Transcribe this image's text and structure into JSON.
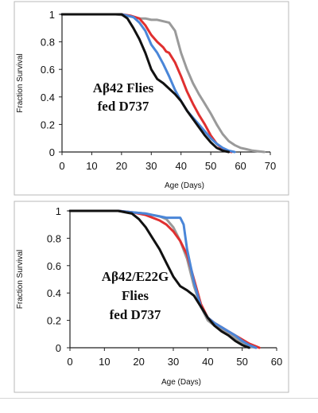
{
  "chart_data": [
    {
      "type": "line",
      "annotation": [
        "Aβ42 Flies",
        "fed D737"
      ],
      "xlabel": "Age (Days)",
      "ylabel": "Fraction Survival",
      "xlim": [
        0,
        70
      ],
      "ylim": [
        0,
        1
      ],
      "xticks": [
        0,
        10,
        20,
        30,
        40,
        50,
        60,
        70
      ],
      "yticks": [
        0,
        0.2,
        0.4,
        0.6,
        0.8,
        1
      ],
      "grid": false,
      "legend": "none",
      "series": [
        {
          "color": "#9a9a9a",
          "x": [
            0,
            18,
            22,
            24,
            26,
            28,
            30,
            32,
            34,
            36,
            38,
            40,
            42,
            44,
            46,
            48,
            50,
            52,
            54,
            56,
            58,
            60,
            62,
            64,
            66,
            68
          ],
          "y": [
            1,
            1,
            0.99,
            0.98,
            0.97,
            0.97,
            0.96,
            0.96,
            0.95,
            0.94,
            0.88,
            0.72,
            0.6,
            0.5,
            0.42,
            0.35,
            0.28,
            0.2,
            0.13,
            0.08,
            0.05,
            0.03,
            0.02,
            0.01,
            0.005,
            0
          ]
        },
        {
          "color": "#e03030",
          "x": [
            0,
            20,
            23,
            26,
            28,
            30,
            32,
            34,
            35,
            36,
            38,
            40,
            42,
            44,
            46,
            48,
            50,
            52,
            54,
            56,
            57
          ],
          "y": [
            1,
            1,
            0.99,
            0.97,
            0.92,
            0.85,
            0.8,
            0.76,
            0.73,
            0.72,
            0.65,
            0.55,
            0.44,
            0.35,
            0.27,
            0.2,
            0.12,
            0.06,
            0.02,
            0.005,
            0
          ]
        },
        {
          "color": "#4a86d8",
          "x": [
            0,
            20,
            24,
            26,
            28,
            30,
            32,
            34,
            36,
            38,
            40,
            42,
            44,
            46,
            48,
            50,
            52,
            54,
            56,
            58
          ],
          "y": [
            1,
            1,
            0.98,
            0.94,
            0.88,
            0.78,
            0.72,
            0.64,
            0.55,
            0.45,
            0.37,
            0.3,
            0.25,
            0.2,
            0.15,
            0.1,
            0.06,
            0.03,
            0.01,
            0
          ]
        },
        {
          "color": "#111111",
          "x": [
            0,
            20,
            22,
            24,
            26,
            28,
            30,
            32,
            34,
            36,
            38,
            40,
            42,
            44,
            46,
            48,
            50,
            52,
            54,
            56
          ],
          "y": [
            1,
            1,
            0.97,
            0.9,
            0.82,
            0.72,
            0.6,
            0.53,
            0.5,
            0.46,
            0.42,
            0.37,
            0.3,
            0.24,
            0.18,
            0.12,
            0.07,
            0.03,
            0.01,
            0
          ]
        }
      ]
    },
    {
      "type": "line",
      "annotation": [
        "Aβ42/E22G",
        "Flies",
        "fed D737"
      ],
      "xlabel": "Age (Days)",
      "ylabel": "Fraction Survival",
      "xlim": [
        0,
        60
      ],
      "ylim": [
        0,
        1
      ],
      "xticks": [
        0,
        10,
        20,
        30,
        40,
        50,
        60
      ],
      "yticks": [
        0,
        0.2,
        0.4,
        0.6,
        0.8,
        1
      ],
      "grid": false,
      "legend": "none",
      "series": [
        {
          "color": "#9a9a9a",
          "x": [
            0,
            14,
            18,
            22,
            24,
            26,
            28,
            30,
            32,
            34,
            36,
            38,
            40,
            42,
            44,
            46,
            48,
            50,
            52,
            54
          ],
          "y": [
            1,
            1,
            0.99,
            0.98,
            0.97,
            0.96,
            0.94,
            0.88,
            0.78,
            0.65,
            0.45,
            0.3,
            0.2,
            0.16,
            0.13,
            0.1,
            0.07,
            0.04,
            0.01,
            0
          ]
        },
        {
          "color": "#e03030",
          "x": [
            0,
            14,
            18,
            22,
            24,
            26,
            28,
            30,
            32,
            34,
            36,
            38,
            40,
            42,
            44,
            46,
            48,
            50,
            52,
            54,
            55
          ],
          "y": [
            1,
            1,
            0.99,
            0.97,
            0.95,
            0.93,
            0.9,
            0.85,
            0.78,
            0.68,
            0.5,
            0.32,
            0.22,
            0.18,
            0.15,
            0.12,
            0.09,
            0.06,
            0.03,
            0.01,
            0
          ]
        },
        {
          "color": "#4a86d8",
          "x": [
            0,
            14,
            18,
            22,
            24,
            26,
            28,
            30,
            32,
            33,
            34,
            36,
            38,
            40,
            42,
            44,
            46,
            48,
            50,
            52,
            54
          ],
          "y": [
            1,
            1,
            0.99,
            0.98,
            0.97,
            0.96,
            0.95,
            0.95,
            0.95,
            0.9,
            0.72,
            0.48,
            0.3,
            0.22,
            0.18,
            0.15,
            0.12,
            0.09,
            0.05,
            0.02,
            0
          ]
        },
        {
          "color": "#111111",
          "x": [
            0,
            14,
            18,
            20,
            22,
            24,
            26,
            28,
            30,
            32,
            34,
            36,
            38,
            40,
            42,
            44,
            46,
            48,
            50,
            52
          ],
          "y": [
            1,
            1,
            0.98,
            0.94,
            0.88,
            0.8,
            0.72,
            0.62,
            0.52,
            0.45,
            0.42,
            0.38,
            0.3,
            0.22,
            0.16,
            0.12,
            0.09,
            0.05,
            0.02,
            0
          ]
        }
      ]
    }
  ]
}
